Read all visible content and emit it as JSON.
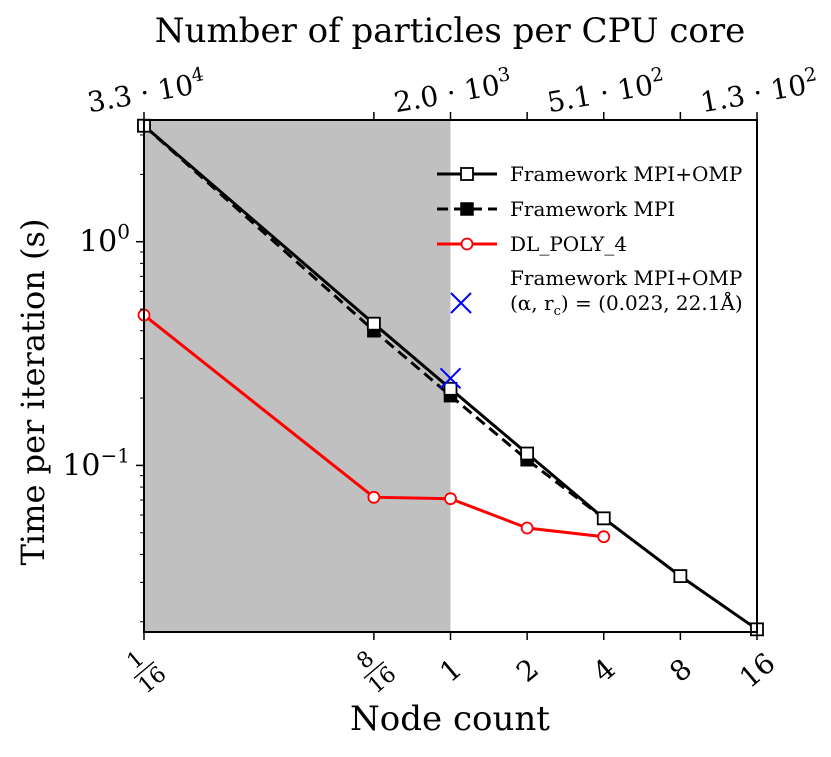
{
  "chart_data": {
    "type": "line",
    "title": "Number of particles per CPU core",
    "xlabel": "Node count",
    "ylabel": "Time per iteration (s)",
    "x_scale": "log2",
    "y_scale": "log10",
    "xlim": [
      0.0625,
      16
    ],
    "ylim": [
      0.018,
      3.5
    ],
    "x_ticks": [
      {
        "value": 0.0625,
        "num": "1",
        "den": "16"
      },
      {
        "value": 0.5,
        "num": "8",
        "den": "16"
      },
      {
        "value": 1,
        "label": "1"
      },
      {
        "value": 2,
        "label": "2"
      },
      {
        "value": 4,
        "label": "4"
      },
      {
        "value": 8,
        "label": "8"
      },
      {
        "value": 16,
        "label": "16"
      }
    ],
    "y_ticks": [
      {
        "value": 1.0,
        "base": "10",
        "exp": "0"
      },
      {
        "value": 0.1,
        "base": "10",
        "exp": "−1"
      }
    ],
    "top_ticks": [
      {
        "value": 0.0625,
        "mant": "3.3",
        "exp": "4"
      },
      {
        "value": 1,
        "mant": "2.0",
        "exp": "3"
      },
      {
        "value": 4,
        "mant": "5.1",
        "exp": "2"
      },
      {
        "value": 16,
        "mant": "1.3",
        "exp": "2"
      }
    ],
    "shaded_region": {
      "x": [
        0.0625,
        1
      ],
      "color": "#c0c0c0"
    },
    "series": [
      {
        "name": "Framework MPI+OMP",
        "color": "#000000",
        "linestyle": "solid",
        "marker": "open-square",
        "x": [
          0.0625,
          0.5,
          1,
          2,
          4,
          8,
          16
        ],
        "y": [
          3.3,
          0.43,
          0.22,
          0.113,
          0.058,
          0.032,
          0.0185
        ]
      },
      {
        "name": "Framework MPI",
        "color": "#000000",
        "linestyle": "dashed",
        "marker": "filled-square",
        "x": [
          0.0625,
          0.5,
          1,
          2,
          4
        ],
        "y": [
          3.3,
          0.4,
          0.205,
          0.106,
          0.058
        ]
      },
      {
        "name": "DL_POLY_4",
        "color": "#ff0000",
        "linestyle": "solid",
        "marker": "open-circle",
        "x": [
          0.0625,
          0.5,
          1,
          2,
          4
        ],
        "y": [
          0.47,
          0.072,
          0.071,
          0.0525,
          0.048
        ]
      },
      {
        "name": "Framework MPI+OMP",
        "name_line2": "(α, r",
        "name_sub": "c",
        "name_rest": ") = (0.023, 22.1Å)",
        "color": "#0000ff",
        "linestyle": "none",
        "marker": "x",
        "x": [
          1
        ],
        "y": [
          0.245
        ]
      }
    ],
    "legend_position": "top-right"
  }
}
